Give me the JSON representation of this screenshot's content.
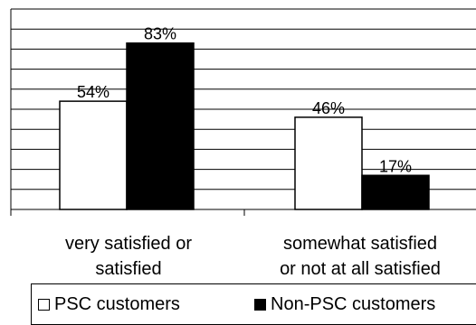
{
  "chart_data": {
    "type": "bar",
    "title": "",
    "xlabel": "",
    "ylabel": "",
    "categories": [
      [
        "very satisfied or",
        "satisfied"
      ],
      [
        "somewhat satisfied",
        "or not at all satisfied"
      ]
    ],
    "series": [
      {
        "name": "PSC customers",
        "values": [
          54,
          46
        ],
        "labels": [
          "54%",
          "46%"
        ],
        "color": "#ffffff"
      },
      {
        "name": "Non-PSC customers",
        "values": [
          83,
          17
        ],
        "labels": [
          "83%",
          "17%"
        ],
        "color": "#000000"
      }
    ],
    "ylim": [
      0,
      100
    ],
    "grid": true,
    "legend_position": "bottom"
  }
}
